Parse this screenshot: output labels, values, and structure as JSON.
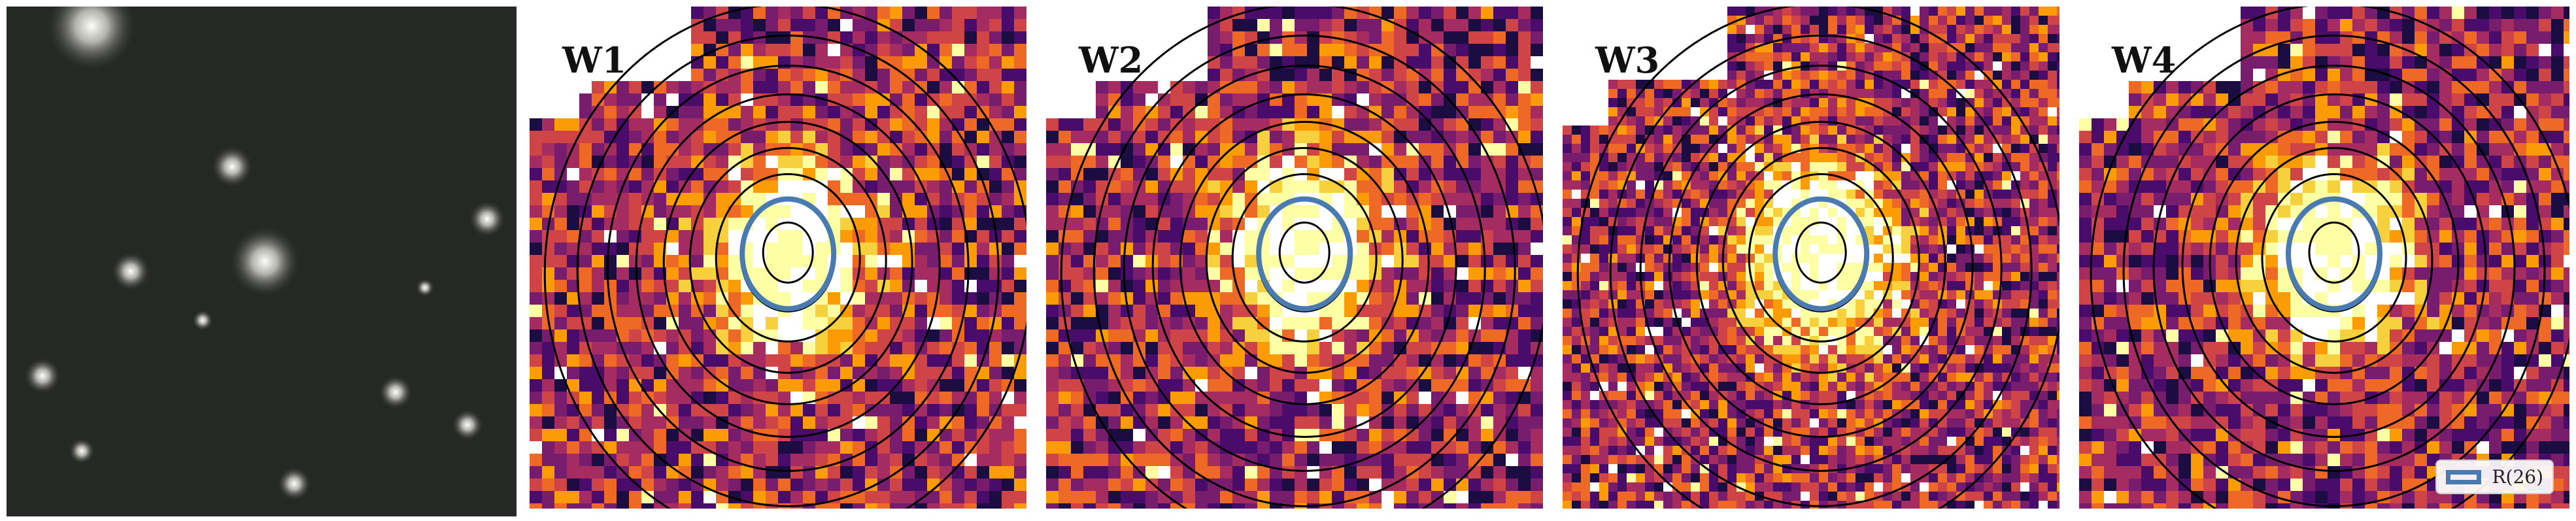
{
  "panels": [
    {
      "band": "W1"
    },
    {
      "band": "W2"
    },
    {
      "band": "W3"
    },
    {
      "band": "W4"
    }
  ],
  "legend": {
    "label": "R(26)",
    "color": "#4a7bb0"
  },
  "colors": {
    "ellipse": "#000000",
    "highlight_ellipse": "#4a7bb0",
    "colormap": [
      "#1b0c41",
      "#4a0c6b",
      "#781c6d",
      "#a52c60",
      "#cf4446",
      "#ed6925",
      "#fb9b06",
      "#f7d13d",
      "#fcffa4"
    ]
  }
}
